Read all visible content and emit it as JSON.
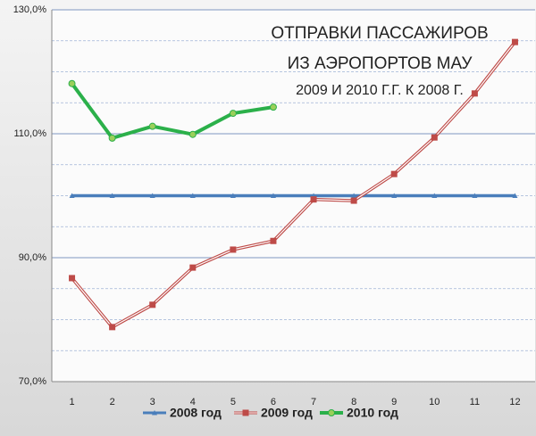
{
  "chart_data": {
    "type": "line",
    "title": [
      "ОТПРАВКИ ПАССАЖИРОВ",
      "ИЗ АЭРОПОРТОВ МАУ",
      "2009 И 2010 Г.Г.  К 2008 Г."
    ],
    "categories": [
      "1",
      "2",
      "3",
      "4",
      "5",
      "6",
      "7",
      "8",
      "9",
      "10",
      "11",
      "12"
    ],
    "series": [
      {
        "name": "2008 год",
        "color": "#4a7ebb",
        "marker": "triangle",
        "values": [
          100,
          100,
          100,
          100,
          100,
          100,
          100,
          100,
          100,
          100,
          100,
          100
        ]
      },
      {
        "name": "2009 год",
        "color": "#be4b48",
        "marker": "square",
        "values": [
          86.7,
          78.8,
          82.4,
          88.4,
          91.3,
          92.7,
          99.4,
          99.2,
          103.5,
          109.4,
          116.5,
          124.8
        ]
      },
      {
        "name": "2010 год",
        "color": "#2bb04a",
        "marker": "circle",
        "values": [
          118.1,
          109.3,
          111.2,
          109.9,
          113.3,
          114.3,
          null,
          null,
          null,
          null,
          null,
          null
        ]
      }
    ],
    "ylim": [
      70,
      130
    ],
    "yticks": [
      {
        "value": 70,
        "label": "70,0%"
      },
      {
        "value": 90,
        "label": "90,0%"
      },
      {
        "value": 110,
        "label": "110,0%"
      },
      {
        "value": 130,
        "label": "130,0%"
      }
    ],
    "yminor": [
      75,
      80,
      85,
      95,
      100,
      105,
      115,
      120,
      125
    ],
    "grid": true,
    "legend": "bottom"
  }
}
